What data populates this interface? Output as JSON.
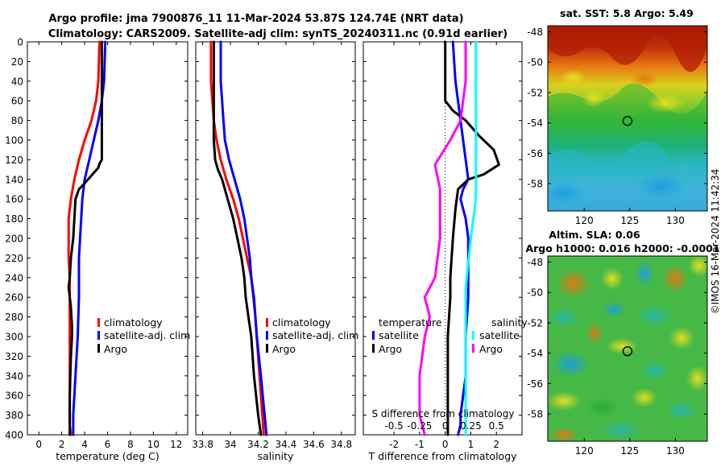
{
  "header": {
    "title_line1": "Argo profile: jma 7900876_11 11-Mar-2024 53.87S 124.74E (NRT data)",
    "title_line2": "Climatology: CARS2009. Satellite-adj clim: synTS_20240311.nc (0.91d earlier)"
  },
  "depth_axis": {
    "ticks": [
      0,
      20,
      40,
      60,
      80,
      100,
      120,
      140,
      160,
      180,
      200,
      220,
      240,
      260,
      280,
      300,
      320,
      340,
      360,
      380,
      400
    ],
    "range": [
      0,
      400
    ]
  },
  "chart_data": [
    {
      "id": "temperature",
      "type": "line",
      "xlabel": "temperature (deg C)",
      "xlim": [
        -1,
        13
      ],
      "xticks": [
        0,
        2,
        4,
        6,
        8,
        10,
        12
      ],
      "ylabel": "depth",
      "ylim": [
        400,
        0
      ],
      "legend": [
        "climatology",
        "satellite-adj. clim",
        "Argo"
      ],
      "series": [
        {
          "name": "climatology",
          "color": "#ff0000",
          "x": [
            5.3,
            5.2,
            5.0,
            4.6,
            4.0,
            3.5,
            3.1,
            2.8,
            2.6,
            2.6,
            2.6,
            2.7,
            2.7,
            2.7,
            2.7,
            2.7,
            2.7,
            2.7,
            2.7,
            2.7,
            2.8
          ],
          "depth": [
            0,
            40,
            60,
            80,
            100,
            120,
            140,
            160,
            180,
            200,
            220,
            240,
            260,
            280,
            300,
            320,
            340,
            360,
            380,
            390,
            400
          ]
        },
        {
          "name": "satellite-adj. clim",
          "color": "#0000ff",
          "x": [
            5.8,
            5.7,
            5.5,
            5.2,
            4.8,
            4.4,
            4.0,
            3.8,
            3.7,
            3.6,
            3.5,
            3.5,
            3.5,
            3.4,
            3.3,
            3.2,
            3.1,
            3.0,
            3.0
          ],
          "depth": [
            0,
            40,
            60,
            80,
            100,
            120,
            140,
            160,
            180,
            200,
            220,
            240,
            260,
            300,
            320,
            340,
            360,
            380,
            400
          ]
        },
        {
          "name": "Argo",
          "color": "#000000",
          "x": [
            5.5,
            5.5,
            5.5,
            5.5,
            5.3,
            5.2,
            4.6,
            4.0,
            3.5,
            3.2,
            3.1,
            3.0,
            2.8,
            2.7,
            2.6,
            2.8,
            2.9,
            2.9,
            2.8,
            2.7,
            2.7,
            2.7
          ],
          "depth": [
            0,
            60,
            100,
            120,
            124,
            128,
            136,
            144,
            150,
            160,
            180,
            200,
            220,
            240,
            250,
            270,
            290,
            300,
            320,
            360,
            380,
            400
          ]
        }
      ]
    },
    {
      "id": "salinity",
      "type": "line",
      "xlabel": "salinity",
      "xlim": [
        33.75,
        34.9
      ],
      "xticks": [
        33.8,
        34,
        34.2,
        34.4,
        34.6,
        34.8
      ],
      "ylabel": "depth",
      "ylim": [
        400,
        0
      ],
      "legend": [
        "climatology",
        "satellite-adj. clim",
        "Argo"
      ],
      "series": [
        {
          "name": "climatology",
          "color": "#ff0000",
          "x": [
            33.86,
            33.86,
            33.87,
            33.88,
            33.9,
            33.93,
            33.97,
            34.02,
            34.06,
            34.09,
            34.12,
            34.15,
            34.18,
            34.21,
            34.24
          ],
          "depth": [
            0,
            40,
            60,
            80,
            100,
            120,
            140,
            160,
            180,
            200,
            220,
            240,
            280,
            340,
            400
          ]
        },
        {
          "name": "satellite-adj. clim",
          "color": "#0000ff",
          "x": [
            33.93,
            33.93,
            33.94,
            33.95,
            33.96,
            33.99,
            34.03,
            34.07,
            34.1,
            34.12,
            34.14,
            34.15,
            34.17,
            34.19,
            34.22,
            34.26
          ],
          "depth": [
            0,
            40,
            60,
            80,
            100,
            120,
            140,
            160,
            180,
            200,
            220,
            240,
            260,
            300,
            340,
            400
          ]
        },
        {
          "name": "Argo",
          "color": "#000000",
          "x": [
            33.88,
            33.88,
            33.88,
            33.89,
            33.91,
            33.94,
            33.98,
            34.02,
            34.05,
            34.08,
            34.1,
            34.11,
            34.13,
            34.15,
            34.17,
            34.2,
            34.22
          ],
          "depth": [
            0,
            60,
            100,
            120,
            130,
            140,
            160,
            180,
            200,
            220,
            240,
            260,
            280,
            300,
            340,
            380,
            400
          ]
        }
      ]
    },
    {
      "id": "difference",
      "type": "line",
      "xlabel": "T difference from climatology",
      "xlim": [
        -3.2,
        3.0
      ],
      "xticks": [
        -2,
        -1,
        0,
        1,
        2
      ],
      "secondary_xlabel": "S difference from climatology",
      "secondary_xticks": [
        "-0.5",
        "-0.25",
        "0",
        "0.25",
        "0.5"
      ],
      "ylabel": "depth",
      "ylim": [
        400,
        0
      ],
      "legend_headers": [
        "temperature",
        "salinity"
      ],
      "legend": [
        "satellite",
        "Argo",
        "satellite",
        "Argo"
      ],
      "series": [
        {
          "name": "temperature satellite",
          "color": "#0000ff",
          "x": [
            0.3,
            0.4,
            0.6,
            0.8,
            0.9,
            0.7,
            0.6,
            0.8,
            0.9,
            0.9,
            0.9,
            0.8,
            0.8,
            0.8,
            0.7,
            0.6,
            0.6,
            0.5
          ],
          "depth": [
            0,
            40,
            80,
            120,
            140,
            150,
            160,
            180,
            200,
            220,
            260,
            300,
            320,
            340,
            360,
            380,
            390,
            400
          ]
        },
        {
          "name": "temperature Argo",
          "color": "#000000",
          "x": [
            0.0,
            0.0,
            0.0,
            0.3,
            0.8,
            1.3,
            1.9,
            2.1,
            1.5,
            0.9,
            0.5,
            0.4,
            0.3,
            0.2,
            0.2,
            0.1,
            0.1,
            0.1,
            0.1
          ],
          "depth": [
            0,
            40,
            60,
            70,
            80,
            95,
            110,
            125,
            135,
            140,
            150,
            170,
            200,
            240,
            260,
            300,
            340,
            380,
            400
          ]
        },
        {
          "name": "salinity satellite",
          "color": "#00ffff",
          "x": [
            0.3,
            0.3,
            0.3,
            0.3,
            0.3,
            0.25,
            0.2,
            0.2,
            0.2
          ],
          "depth": [
            0,
            40,
            80,
            120,
            160,
            200,
            250,
            300,
            400
          ]
        },
        {
          "name": "salinity Argo",
          "color": "#ff00ff",
          "x": [
            0.2,
            0.2,
            0.15,
            0.05,
            -0.1,
            -0.05,
            -0.05,
            -0.1,
            -0.2,
            -0.15,
            -0.2,
            -0.25,
            -0.25,
            -0.2
          ],
          "depth": [
            0,
            40,
            80,
            100,
            125,
            150,
            200,
            240,
            260,
            280,
            300,
            340,
            380,
            400
          ]
        }
      ]
    }
  ],
  "maps": {
    "sst": {
      "title": "sat. SST: 5.8 Argo: 5.49",
      "lat_ticks": [
        "-48",
        "-50",
        "-52",
        "-54",
        "-56",
        "-58"
      ],
      "lon_ticks": [
        "120",
        "125",
        "130"
      ],
      "marker_lon": 124.74,
      "marker_lat": -53.87
    },
    "sla": {
      "title_line1": "Altim. SLA: 0.06",
      "title_line2": "Argo h1000: 0.016 h2000: -0.0001",
      "lat_ticks": [
        "-48",
        "-50",
        "-52",
        "-54",
        "-56",
        "-58"
      ],
      "lon_ticks": [
        "120",
        "125",
        "130"
      ],
      "marker_lon": 124.74,
      "marker_lat": -53.87
    }
  },
  "credit": "©IMOS 16-Mar-2024 11:42:34",
  "colors": {
    "clim": "#ff0000",
    "sat": "#0000ff",
    "argo": "#000000",
    "sal_sat": "#00ffff",
    "sal_argo": "#ff00ff"
  }
}
